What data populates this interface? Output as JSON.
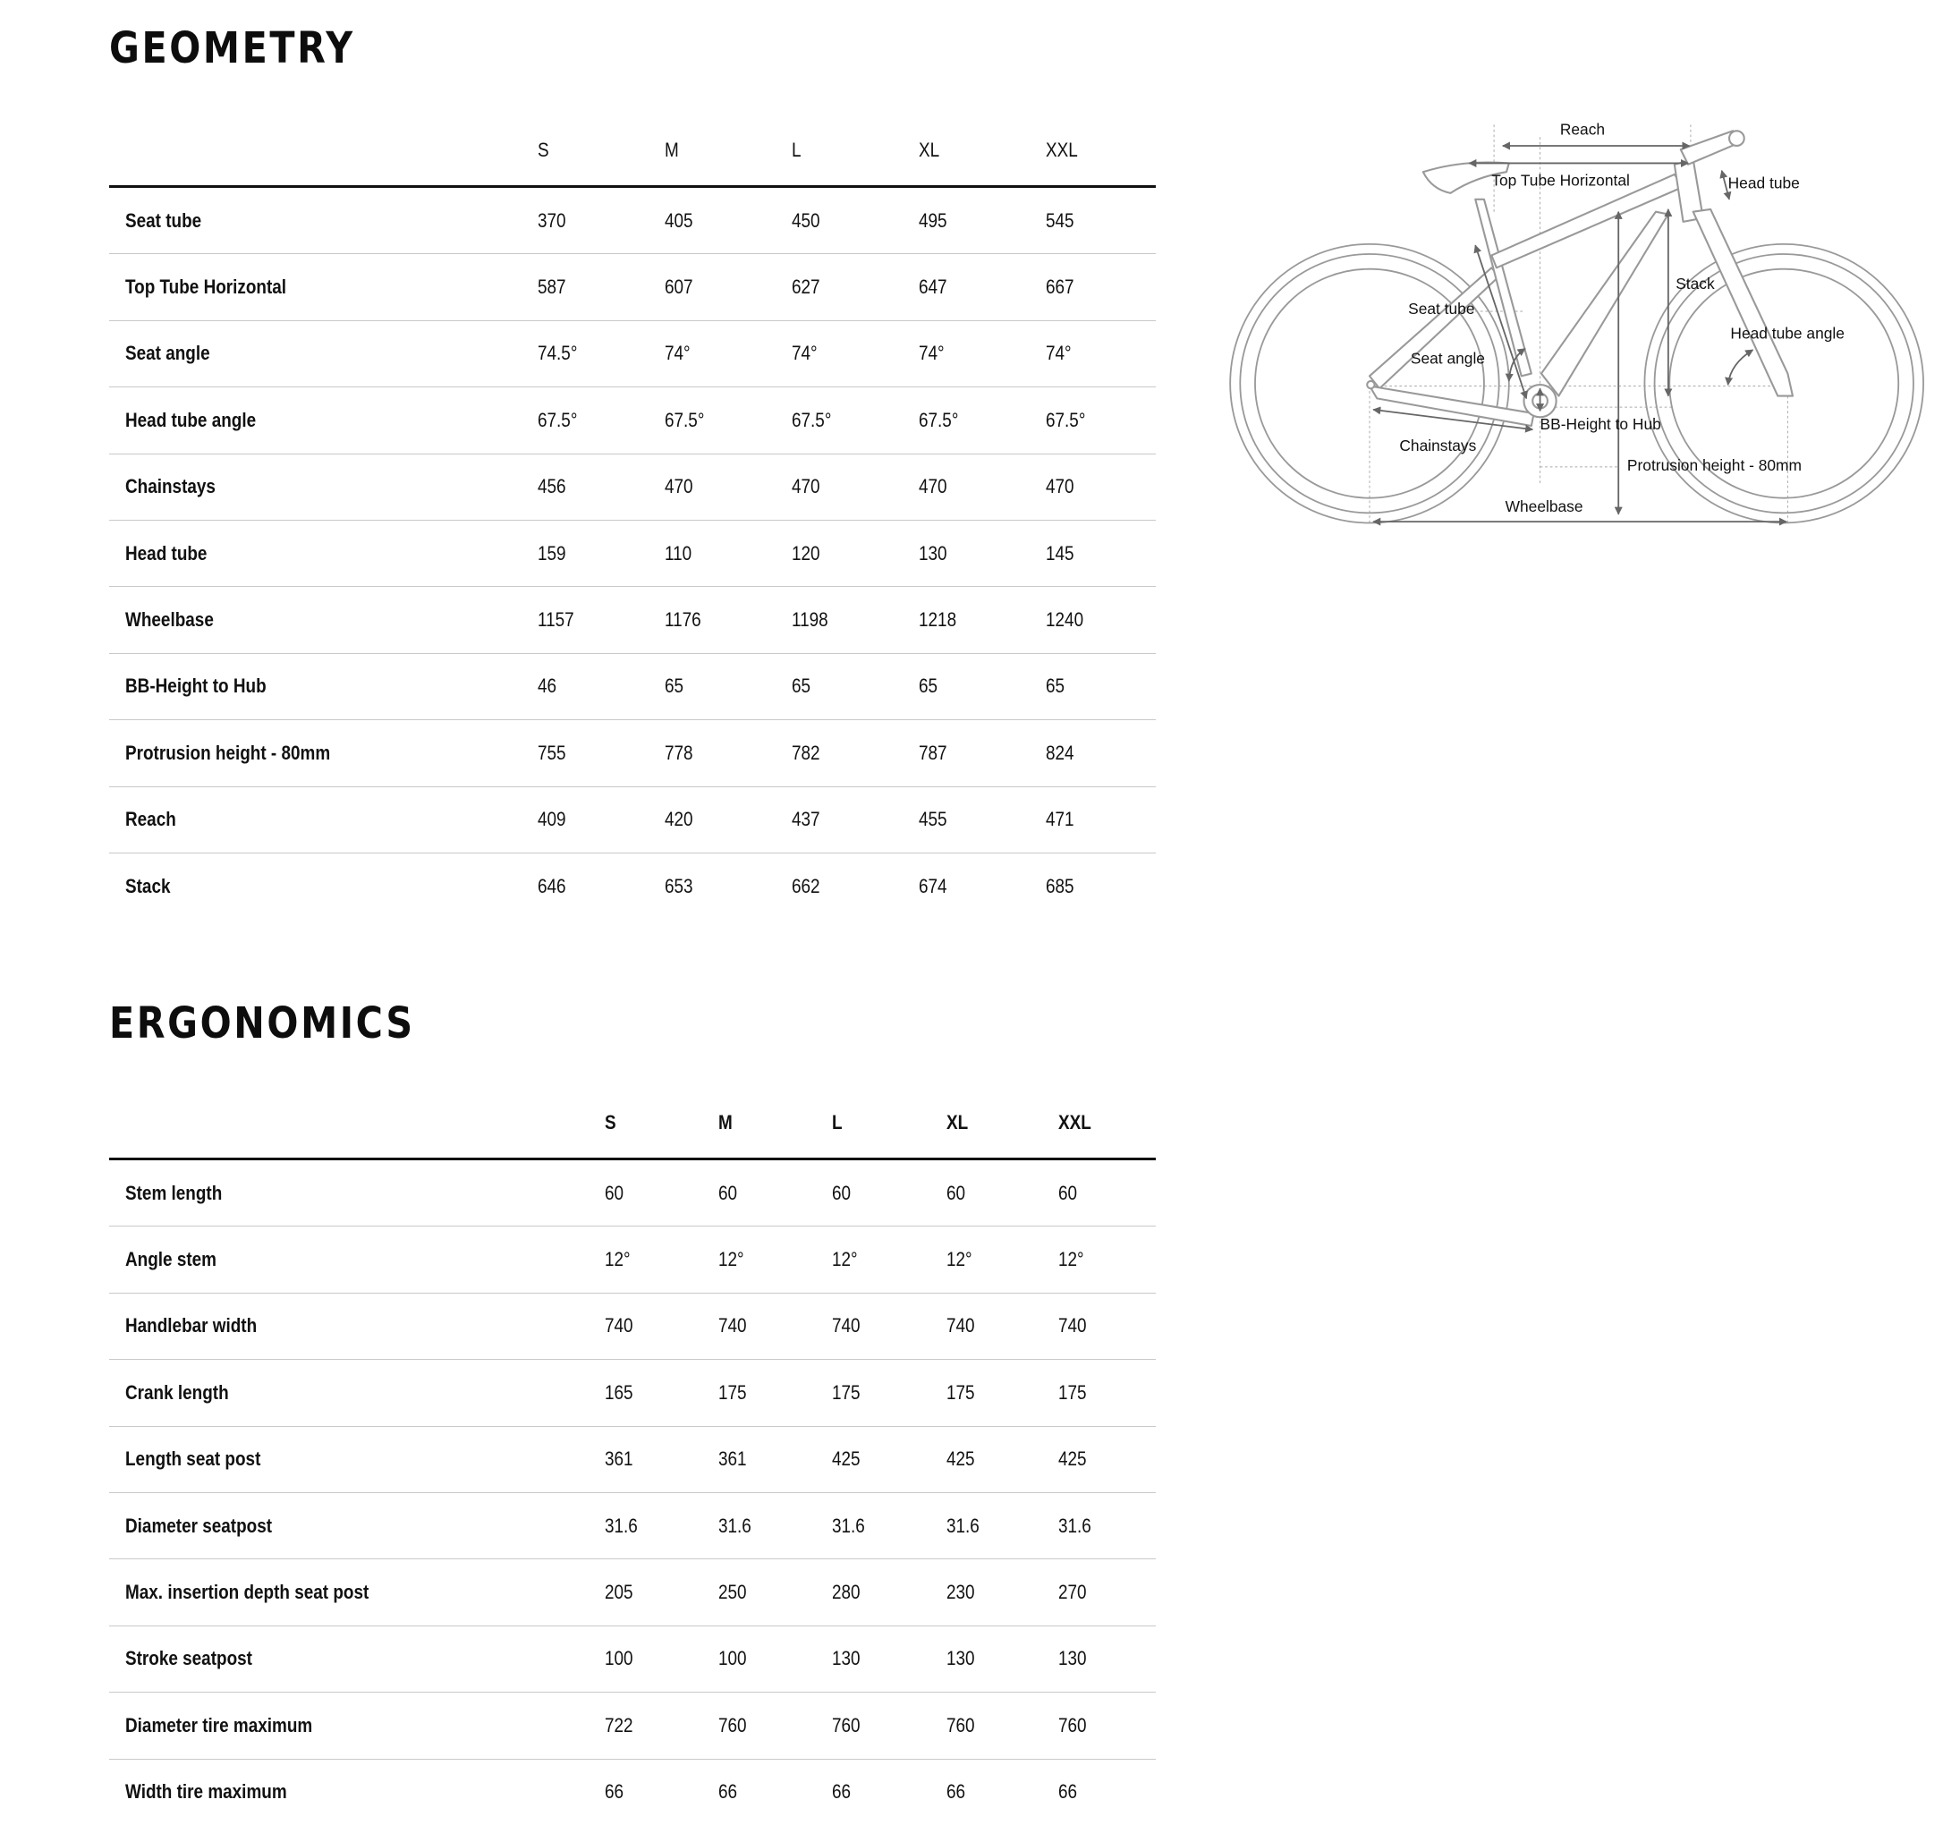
{
  "geometry": {
    "title": "GEOMETRY",
    "sizes": [
      "S",
      "M",
      "L",
      "XL",
      "XXL"
    ],
    "rows": [
      {
        "label": "Seat tube",
        "values": [
          "370",
          "405",
          "450",
          "495",
          "545"
        ]
      },
      {
        "label": "Top Tube Horizontal",
        "values": [
          "587",
          "607",
          "627",
          "647",
          "667"
        ]
      },
      {
        "label": "Seat angle",
        "values": [
          "74.5°",
          "74°",
          "74°",
          "74°",
          "74°"
        ]
      },
      {
        "label": "Head tube angle",
        "values": [
          "67.5°",
          "67.5°",
          "67.5°",
          "67.5°",
          "67.5°"
        ]
      },
      {
        "label": "Chainstays",
        "values": [
          "456",
          "470",
          "470",
          "470",
          "470"
        ]
      },
      {
        "label": "Head tube",
        "values": [
          "159",
          "110",
          "120",
          "130",
          "145"
        ]
      },
      {
        "label": "Wheelbase",
        "values": [
          "1157",
          "1176",
          "1198",
          "1218",
          "1240"
        ]
      },
      {
        "label": "BB-Height to Hub",
        "values": [
          "46",
          "65",
          "65",
          "65",
          "65"
        ]
      },
      {
        "label": "Protrusion height - 80mm",
        "values": [
          "755",
          "778",
          "782",
          "787",
          "824"
        ]
      },
      {
        "label": "Reach",
        "values": [
          "409",
          "420",
          "437",
          "455",
          "471"
        ]
      },
      {
        "label": "Stack",
        "values": [
          "646",
          "653",
          "662",
          "674",
          "685"
        ]
      }
    ]
  },
  "diagram": {
    "labels": {
      "reach": "Reach",
      "top_tube": "Top Tube Horizontal",
      "head_tube": "Head tube",
      "stack": "Stack",
      "seat_tube": "Seat tube",
      "head_tube_angle": "Head tube angle",
      "seat_angle": "Seat angle",
      "bb_height": "BB-Height to Hub",
      "chainstays": "Chainstays",
      "protrusion": "Protrusion height - 80mm",
      "wheelbase": "Wheelbase"
    }
  },
  "ergonomics": {
    "title": "ERGONOMICS",
    "sizes": [
      "S",
      "M",
      "L",
      "XL",
      "XXL"
    ],
    "rows": [
      {
        "label": "Stem length",
        "values": [
          "60",
          "60",
          "60",
          "60",
          "60"
        ]
      },
      {
        "label": "Angle stem",
        "values": [
          "12°",
          "12°",
          "12°",
          "12°",
          "12°"
        ]
      },
      {
        "label": "Handlebar width",
        "values": [
          "740",
          "740",
          "740",
          "740",
          "740"
        ]
      },
      {
        "label": "Crank length",
        "values": [
          "165",
          "175",
          "175",
          "175",
          "175"
        ]
      },
      {
        "label": "Length seat post",
        "values": [
          "361",
          "361",
          "425",
          "425",
          "425"
        ]
      },
      {
        "label": "Diameter seatpost",
        "values": [
          "31.6",
          "31.6",
          "31.6",
          "31.6",
          "31.6"
        ]
      },
      {
        "label": "Max. insertion depth seat post",
        "values": [
          "205",
          "250",
          "280",
          "230",
          "270"
        ]
      },
      {
        "label": "Stroke seatpost",
        "values": [
          "100",
          "100",
          "130",
          "130",
          "130"
        ]
      },
      {
        "label": "Diameter tire maximum",
        "values": [
          "722",
          "760",
          "760",
          "760",
          "760"
        ]
      },
      {
        "label": "Width tire maximum",
        "values": [
          "66",
          "66",
          "66",
          "66",
          "66"
        ]
      }
    ]
  }
}
